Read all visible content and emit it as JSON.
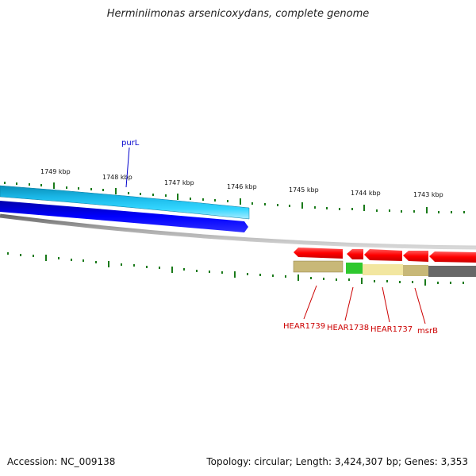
{
  "title": "Herminiimonas arsenicoxydans, complete genome",
  "footer": {
    "accession": "Accession: NC_009138",
    "summary": "Topology: circular; Length: 3,424,307 bp; Genes: 3,353"
  },
  "scale_labels": [
    "1749 kbp",
    "1748 kbp",
    "1747 kbp",
    "1746 kbp",
    "1745 kbp",
    "1744 kbp",
    "1743 kbp"
  ],
  "genes": [
    {
      "label": "purL",
      "color": "#0000cc"
    },
    {
      "label": "HEAR1739",
      "color": "#cc0000"
    },
    {
      "label": "HEAR1738",
      "color": "#cc0000"
    },
    {
      "label": "HEAR1737",
      "color": "#cc0000"
    },
    {
      "label": "msrB",
      "color": "#cc0000"
    }
  ],
  "colors": {
    "tick": "#1a7a1a",
    "forward_strand": "#ff0000",
    "reverse_strand": "#0000ff",
    "cog_light_blue": "#22ccff",
    "backbone": "#888888"
  }
}
